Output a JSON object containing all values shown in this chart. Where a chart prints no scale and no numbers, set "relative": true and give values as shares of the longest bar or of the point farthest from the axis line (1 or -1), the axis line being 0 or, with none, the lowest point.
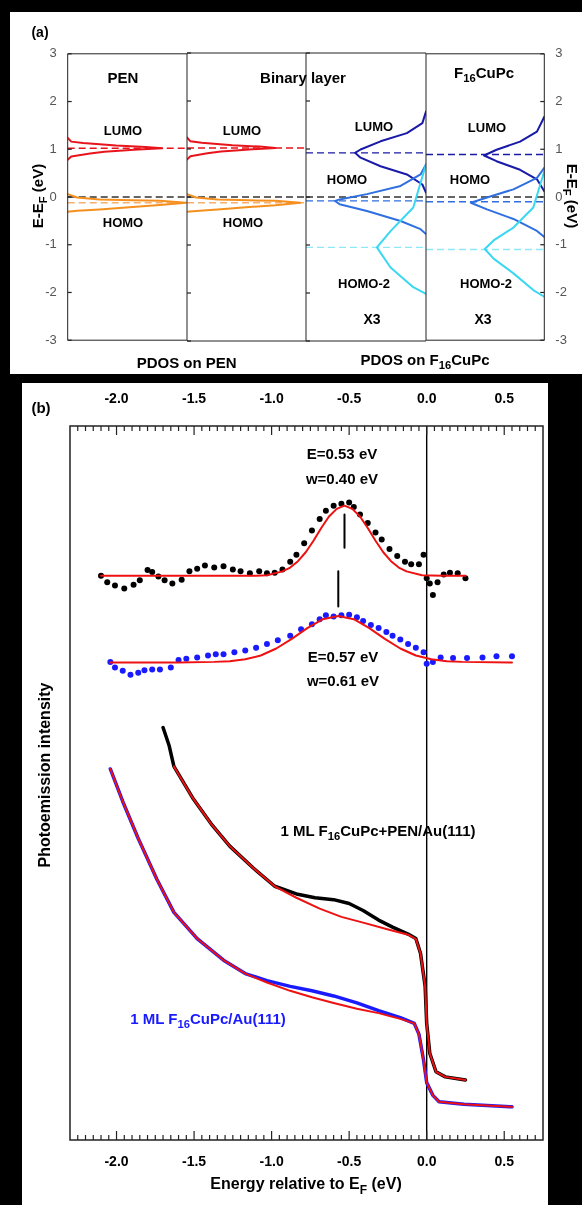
{
  "chart_data": [
    {
      "type": "line",
      "orientation": "horizontal",
      "title": "PEN",
      "xlabel": "PDOS on PEN",
      "ylabel": "E-E$_{F}$ (eV)",
      "annotations": [
        "(a)"
      ],
      "relative": true,
      "ylim": [
        -3,
        3
      ],
      "yticks": [
        -3,
        -2,
        -1,
        0,
        1,
        2,
        3
      ],
      "tick_labels": "y",
      "ref_lines": [
        {
          "axis": "y",
          "value": 1.02,
          "color": "#e8141c",
          "line_style": "dashed"
        },
        {
          "axis": "y",
          "value": 0,
          "color": "#333333",
          "line_style": "dashed"
        },
        {
          "axis": "y",
          "value": -0.12,
          "color": "#f5b070",
          "line_style": "dashed"
        }
      ],
      "series": [
        {
          "name": "LUMO",
          "color": "#e8141c",
          "x": [
            1.24,
            1.16,
            1.13,
            1.08,
            1.05,
            1.02,
            0.99,
            0.95,
            0.91,
            0.85,
            0.78
          ],
          "values": [
            0,
            0.03,
            0.13,
            0.41,
            0.66,
            0.8,
            0.56,
            0.31,
            0.19,
            0.03,
            0
          ]
        },
        {
          "name": "HOMO",
          "color": "#f5901e",
          "x": [
            0.06,
            -0.01,
            -0.05,
            -0.07,
            -0.08,
            -0.12,
            -0.17,
            -0.21,
            -0.26,
            -0.29,
            -0.31
          ],
          "values": [
            0,
            0.08,
            0.27,
            0.55,
            0.78,
            1,
            0.78,
            0.55,
            0.27,
            0.08,
            0
          ]
        }
      ]
    },
    {
      "type": "line",
      "orientation": "horizontal",
      "title": "Binary layer",
      "relative": true,
      "ylim": [
        -3,
        3
      ],
      "yticks": [
        -3,
        -2,
        -1,
        0,
        1,
        2,
        3
      ],
      "tick_labels": false,
      "ref_lines": [
        {
          "axis": "y",
          "value": 1.02,
          "color": "#e8141c",
          "line_style": "dashed"
        },
        {
          "axis": "y",
          "value": 0,
          "color": "#333333",
          "line_style": "dashed"
        },
        {
          "axis": "y",
          "value": -0.12,
          "color": "#f5b070",
          "line_style": "dashed"
        }
      ],
      "series": [
        {
          "name": "LUMO",
          "color": "#e8141c",
          "x": [
            1.24,
            1.16,
            1.13,
            1.08,
            1.05,
            1.02,
            0.99,
            0.95,
            0.91,
            0.85,
            0.78
          ],
          "values": [
            0,
            0.03,
            0.13,
            0.4,
            0.64,
            0.78,
            0.55,
            0.3,
            0.18,
            0.03,
            0
          ]
        },
        {
          "name": "HOMO",
          "color": "#f5901e",
          "x": [
            0.06,
            -0.01,
            -0.05,
            -0.07,
            -0.08,
            -0.12,
            -0.17,
            -0.21,
            -0.26,
            -0.29,
            -0.31
          ],
          "values": [
            0,
            0.08,
            0.27,
            0.55,
            0.78,
            1,
            0.78,
            0.55,
            0.27,
            0.08,
            0
          ]
        }
      ]
    },
    {
      "type": "line",
      "orientation": "horizontal",
      "xlabel": "PDOS on F$_{16}$CuPc",
      "annotations": [
        "X3"
      ],
      "relative": true,
      "ylim": [
        -3,
        3
      ],
      "yticks": [
        -3,
        -2,
        -1,
        0,
        1,
        2,
        3
      ],
      "tick_labels": false,
      "ref_lines": [
        {
          "axis": "y",
          "value": 0.92,
          "color": "#1a1aa8",
          "line_style": "dashed"
        },
        {
          "axis": "y",
          "value": 0,
          "color": "#333333",
          "line_style": "dashed"
        },
        {
          "axis": "y",
          "value": -0.08,
          "color": "#2f6fe0",
          "line_style": "dashed"
        },
        {
          "axis": "y",
          "value": -1.05,
          "color": "#8ee8f5",
          "line_style": "dashed"
        }
      ],
      "series": [
        {
          "name": "LUMO",
          "color": "#1a1aa8",
          "x": [
            1.78,
            1.54,
            1.33,
            1.16,
            0.99,
            0.92,
            0.82,
            0.64,
            0.47,
            0.26,
            0.09
          ],
          "values": [
            0,
            -0.04,
            -0.21,
            -0.5,
            -0.72,
            -0.78,
            -0.72,
            -0.5,
            -0.21,
            -0.04,
            0
          ]
        },
        {
          "name": "HOMO",
          "color": "#2f6fe0",
          "x": [
            0.68,
            0.47,
            0.23,
            0.06,
            -0.05,
            -0.08,
            -0.15,
            -0.29,
            -0.5,
            -0.67,
            -0.77
          ],
          "values": [
            0,
            -0.06,
            -0.28,
            -0.65,
            -0.95,
            -1,
            -0.95,
            -0.65,
            -0.28,
            -0.06,
            0
          ]
        },
        {
          "name": "HOMO-2",
          "color": "#3ad8f0",
          "x": [
            0.68,
            -0.22,
            -0.71,
            -1.05,
            -1.47,
            -1.88,
            -2.02
          ],
          "values": [
            0,
            -0.14,
            -0.39,
            -0.54,
            -0.39,
            -0.14,
            0
          ]
        }
      ]
    },
    {
      "type": "line",
      "orientation": "horizontal",
      "title": "F$_{16}$CuPc",
      "ylabel": "E-E$_{F}$ (eV)",
      "annotations": [
        "X3"
      ],
      "relative": true,
      "ylim": [
        -3,
        3
      ],
      "yticks": [
        -3,
        -2,
        -1,
        0,
        1,
        2,
        3
      ],
      "ref_lines": [
        {
          "axis": "y",
          "value": 0.89,
          "color": "#1a1aa8",
          "line_style": "dashed"
        },
        {
          "axis": "y",
          "value": 0,
          "color": "#333333",
          "line_style": "dashed"
        },
        {
          "axis": "y",
          "value": -0.1,
          "color": "#2f6fe0",
          "line_style": "dashed"
        },
        {
          "axis": "y",
          "value": -1.1,
          "color": "#8ee8f5",
          "line_style": "dashed"
        }
      ],
      "series": [
        {
          "name": "LUMO",
          "color": "#1a1aa8",
          "x": [
            1.68,
            1.37,
            1.16,
            0.99,
            0.87,
            0.75,
            0.57,
            0.37,
            0.12
          ],
          "values": [
            0,
            -0.1,
            -0.33,
            -0.65,
            -0.82,
            -0.65,
            -0.33,
            -0.1,
            0
          ]
        },
        {
          "name": "HOMO",
          "color": "#2f6fe0",
          "x": [
            0.61,
            0.4,
            0.16,
            -0.01,
            -0.12,
            -0.26,
            -0.46,
            -0.71,
            -0.84
          ],
          "values": [
            0,
            -0.1,
            -0.42,
            -0.78,
            -1,
            -0.78,
            -0.42,
            -0.1,
            0
          ]
        },
        {
          "name": "HOMO-2",
          "color": "#3ad8f0",
          "x": [
            0.54,
            -0.22,
            -0.64,
            -0.91,
            -1.09,
            -1.29,
            -1.6,
            -1.95,
            -2.09
          ],
          "values": [
            0,
            -0.15,
            -0.42,
            -0.69,
            -0.81,
            -0.69,
            -0.42,
            -0.15,
            0
          ]
        }
      ]
    },
    {
      "type": "line",
      "xlabel": "Energy relative to E$_{F}$ (eV)",
      "ylabel": "Photoemission intensity",
      "annotations": [
        "(b)",
        "E=0.53 eV",
        "w=0.40 eV",
        "E=0.57 eV",
        "w=0.61 eV"
      ],
      "relative": true,
      "xlim": [
        -2.3,
        0.75
      ],
      "xticks": [
        {
          "value": -2.25,
          "label": null
        },
        {
          "value": -2.2,
          "label": null
        },
        {
          "value": -2.15,
          "label": null
        },
        {
          "value": -2.1,
          "label": null
        },
        {
          "value": -2.05,
          "label": null
        },
        {
          "value": -2,
          "label": "-2.0"
        },
        {
          "value": -1.95,
          "label": null
        },
        {
          "value": -1.9,
          "label": null
        },
        {
          "value": -1.85,
          "label": null
        },
        {
          "value": -1.8,
          "label": null
        },
        {
          "value": -1.75,
          "label": null
        },
        {
          "value": -1.7,
          "label": null
        },
        {
          "value": -1.65,
          "label": null
        },
        {
          "value": -1.6,
          "label": null
        },
        {
          "value": -1.55,
          "label": null
        },
        {
          "value": -1.5,
          "label": "-1.5"
        },
        {
          "value": -1.45,
          "label": null
        },
        {
          "value": -1.4,
          "label": null
        },
        {
          "value": -1.35,
          "label": null
        },
        {
          "value": -1.3,
          "label": null
        },
        {
          "value": -1.25,
          "label": null
        },
        {
          "value": -1.2,
          "label": null
        },
        {
          "value": -1.15,
          "label": null
        },
        {
          "value": -1.1,
          "label": null
        },
        {
          "value": -1.05,
          "label": null
        },
        {
          "value": -1,
          "label": "-1.0"
        },
        {
          "value": -0.95,
          "label": null
        },
        {
          "value": -0.9,
          "label": null
        },
        {
          "value": -0.85,
          "label": null
        },
        {
          "value": -0.8,
          "label": null
        },
        {
          "value": -0.75,
          "label": null
        },
        {
          "value": -0.7,
          "label": null
        },
        {
          "value": -0.65,
          "label": null
        },
        {
          "value": -0.6,
          "label": null
        },
        {
          "value": -0.55,
          "label": null
        },
        {
          "value": -0.5,
          "label": "-0.5"
        },
        {
          "value": -0.45,
          "label": null
        },
        {
          "value": -0.4,
          "label": null
        },
        {
          "value": -0.35,
          "label": null
        },
        {
          "value": -0.3,
          "label": null
        },
        {
          "value": -0.25,
          "label": null
        },
        {
          "value": -0.2,
          "label": null
        },
        {
          "value": -0.15,
          "label": null
        },
        {
          "value": -0.1,
          "label": null
        },
        {
          "value": -0.05,
          "label": null
        },
        {
          "value": 0,
          "label": "0.0"
        },
        {
          "value": 0.05,
          "label": null
        },
        {
          "value": 0.1,
          "label": null
        },
        {
          "value": 0.15,
          "label": null
        },
        {
          "value": 0.2,
          "label": null
        },
        {
          "value": 0.25,
          "label": null
        },
        {
          "value": 0.3,
          "label": null
        },
        {
          "value": 0.35,
          "label": null
        },
        {
          "value": 0.4,
          "label": null
        },
        {
          "value": 0.45,
          "label": null
        },
        {
          "value": 0.5,
          "label": "0.5"
        },
        {
          "value": 0.55,
          "label": null
        },
        {
          "value": 0.6,
          "label": null
        },
        {
          "value": 0.65,
          "label": null
        },
        {
          "value": 0.7,
          "label": null
        }
      ],
      "x2lim": [
        -2.3,
        0.75
      ],
      "x2ticks": [
        {
          "value": -2.25,
          "label": null
        },
        {
          "value": -2.2,
          "label": null
        },
        {
          "value": -2.15,
          "label": null
        },
        {
          "value": -2.1,
          "label": null
        },
        {
          "value": -2.05,
          "label": null
        },
        {
          "value": -2,
          "label": "-2.0"
        },
        {
          "value": -1.95,
          "label": null
        },
        {
          "value": -1.9,
          "label": null
        },
        {
          "value": -1.85,
          "label": null
        },
        {
          "value": -1.8,
          "label": null
        },
        {
          "value": -1.75,
          "label": null
        },
        {
          "value": -1.7,
          "label": null
        },
        {
          "value": -1.65,
          "label": null
        },
        {
          "value": -1.6,
          "label": null
        },
        {
          "value": -1.55,
          "label": null
        },
        {
          "value": -1.5,
          "label": "-1.5"
        },
        {
          "value": -1.45,
          "label": null
        },
        {
          "value": -1.4,
          "label": null
        },
        {
          "value": -1.35,
          "label": null
        },
        {
          "value": -1.3,
          "label": null
        },
        {
          "value": -1.25,
          "label": null
        },
        {
          "value": -1.2,
          "label": null
        },
        {
          "value": -1.15,
          "label": null
        },
        {
          "value": -1.1,
          "label": null
        },
        {
          "value": -1.05,
          "label": null
        },
        {
          "value": -1,
          "label": "-1.0"
        },
        {
          "value": -0.95,
          "label": null
        },
        {
          "value": -0.9,
          "label": null
        },
        {
          "value": -0.85,
          "label": null
        },
        {
          "value": -0.8,
          "label": null
        },
        {
          "value": -0.75,
          "label": null
        },
        {
          "value": -0.7,
          "label": null
        },
        {
          "value": -0.65,
          "label": null
        },
        {
          "value": -0.6,
          "label": null
        },
        {
          "value": -0.55,
          "label": null
        },
        {
          "value": -0.5,
          "label": "-0.5"
        },
        {
          "value": -0.45,
          "label": null
        },
        {
          "value": -0.4,
          "label": null
        },
        {
          "value": -0.35,
          "label": null
        },
        {
          "value": -0.3,
          "label": null
        },
        {
          "value": -0.25,
          "label": null
        },
        {
          "value": -0.2,
          "label": null
        },
        {
          "value": -0.15,
          "label": null
        },
        {
          "value": -0.1,
          "label": null
        },
        {
          "value": -0.05,
          "label": null
        },
        {
          "value": 0,
          "label": "0.0"
        },
        {
          "value": 0.05,
          "label": null
        },
        {
          "value": 0.1,
          "label": null
        },
        {
          "value": 0.15,
          "label": null
        },
        {
          "value": 0.2,
          "label": null
        },
        {
          "value": 0.25,
          "label": null
        },
        {
          "value": 0.3,
          "label": null
        },
        {
          "value": 0.35,
          "label": null
        },
        {
          "value": 0.4,
          "label": null
        },
        {
          "value": 0.45,
          "label": null
        },
        {
          "value": 0.5,
          "label": "0.5"
        },
        {
          "value": 0.55,
          "label": null
        },
        {
          "value": 0.6,
          "label": null
        },
        {
          "value": 0.65,
          "label": null
        },
        {
          "value": 0.7,
          "label": null
        }
      ],
      "ref_lines": [
        {
          "axis": "x",
          "value": 0,
          "color": "#000000",
          "line_style": "solid"
        }
      ],
      "series": [
        {
          "type": "scatter",
          "marker": "circle",
          "color": "#000000",
          "x": [
            -2.1,
            -2.06,
            -2.01,
            -1.95,
            -1.89,
            -1.85,
            -1.8,
            -1.77,
            -1.73,
            -1.69,
            -1.64,
            -1.58,
            -1.53,
            -1.48,
            -1.43,
            -1.37,
            -1.31,
            -1.25,
            -1.2,
            -1.14,
            -1.08,
            -1.03,
            -0.98,
            -0.93,
            -0.88,
            -0.84,
            -0.79,
            -0.74,
            -0.69,
            -0.65,
            -0.6,
            -0.55,
            -0.5,
            -0.47,
            -0.43,
            -0.38,
            -0.33,
            -0.29,
            -0.24,
            -0.19,
            -0.14,
            -0.1,
            -0.05,
            -0.02,
            0.0,
            0.02,
            0.04,
            0.07,
            0.11,
            0.15,
            0.2,
            0.25
          ],
          "values": [
            0.885,
            0.875,
            0.87,
            0.865,
            0.871,
            0.878,
            0.894,
            0.891,
            0.884,
            0.878,
            0.873,
            0.879,
            0.892,
            0.896,
            0.901,
            0.898,
            0.9,
            0.895,
            0.892,
            0.889,
            0.892,
            0.889,
            0.89,
            0.895,
            0.907,
            0.918,
            0.936,
            0.956,
            0.974,
            0.987,
            0.995,
            0.998,
            1.0,
            0.993,
            0.981,
            0.968,
            0.953,
            0.942,
            0.927,
            0.916,
            0.907,
            0.903,
            0.903,
            0.918,
            0.881,
            0.873,
            0.855,
            0.875,
            0.887,
            0.89,
            0.889,
            0.881
          ]
        },
        {
          "type": "scatter",
          "marker": "circle",
          "color": "#1a1aff",
          "x": [
            -2.04,
            -2.01,
            -1.96,
            -1.91,
            -1.86,
            -1.82,
            -1.77,
            -1.72,
            -1.65,
            -1.6,
            -1.55,
            -1.48,
            -1.41,
            -1.36,
            -1.31,
            -1.24,
            -1.17,
            -1.1,
            -1.03,
            -0.96,
            -0.88,
            -0.81,
            -0.74,
            -0.69,
            -0.65,
            -0.6,
            -0.55,
            -0.5,
            -0.45,
            -0.41,
            -0.36,
            -0.31,
            -0.26,
            -0.22,
            -0.17,
            -0.12,
            -0.07,
            -0.02,
            0.0,
            0.04,
            0.09,
            0.17,
            0.26,
            0.36,
            0.45,
            0.55
          ],
          "values": [
            0.75,
            0.741,
            0.736,
            0.73,
            0.733,
            0.737,
            0.738,
            0.738,
            0.741,
            0.753,
            0.755,
            0.757,
            0.76,
            0.762,
            0.762,
            0.765,
            0.768,
            0.772,
            0.778,
            0.784,
            0.791,
            0.801,
            0.809,
            0.817,
            0.823,
            0.821,
            0.823,
            0.824,
            0.82,
            0.814,
            0.808,
            0.803,
            0.797,
            0.791,
            0.785,
            0.778,
            0.772,
            0.765,
            0.747,
            0.75,
            0.757,
            0.756,
            0.756,
            0.757,
            0.759,
            0.759
          ]
        },
        {
          "color": "#ee1111",
          "x": [
            -2.1,
            -1.5,
            -1.1,
            -1.03,
            -0.93,
            -0.88,
            -0.83,
            -0.78,
            -0.73,
            -0.68,
            -0.63,
            -0.58,
            -0.53,
            -0.48,
            -0.43,
            -0.38,
            -0.33,
            -0.28,
            -0.23,
            -0.18,
            -0.13,
            -0.03,
            0.1,
            0.25
          ],
          "values": [
            0.885,
            0.885,
            0.885,
            0.886,
            0.892,
            0.898,
            0.908,
            0.922,
            0.94,
            0.96,
            0.978,
            0.99,
            0.995,
            0.99,
            0.978,
            0.96,
            0.94,
            0.922,
            0.908,
            0.898,
            0.892,
            0.886,
            0.885,
            0.885
          ]
        },
        {
          "color": "#ee1111",
          "x": [
            -2.04,
            -1.6,
            -1.37,
            -1.27,
            -1.17,
            -1.07,
            -0.97,
            -0.87,
            -0.77,
            -0.67,
            -0.57,
            -0.47,
            -0.37,
            -0.27,
            -0.17,
            -0.07,
            0.03,
            0.13,
            0.23,
            0.55
          ],
          "values": [
            0.749,
            0.749,
            0.75,
            0.751,
            0.754,
            0.76,
            0.771,
            0.786,
            0.803,
            0.817,
            0.822,
            0.817,
            0.803,
            0.786,
            0.771,
            0.76,
            0.754,
            0.751,
            0.75,
            0.749
          ]
        },
        {
          "color": "#000000",
          "x": [
            -0.53,
            -0.53
          ],
          "values": [
            0.981,
            0.929
          ]
        },
        {
          "color": "#000000",
          "x": [
            -0.57,
            -0.57
          ],
          "values": [
            0.892,
            0.837
          ]
        },
        {
          "name": "1 ML F$_{16}$CuPc+PEN/Au(111)",
          "color": "#000000",
          "x": [
            -1.7,
            -1.66,
            -1.63,
            -1.51,
            -1.39,
            -1.27,
            -1.12,
            -0.98,
            -0.84,
            -0.72,
            -0.6,
            -0.5,
            -0.41,
            -0.31,
            -0.22,
            -0.12,
            -0.07,
            -0.04,
            -0.01,
            0.0,
            0.02,
            0.06,
            0.12,
            0.25
          ],
          "values": [
            0.647,
            0.618,
            0.586,
            0.537,
            0.496,
            0.461,
            0.427,
            0.398,
            0.386,
            0.38,
            0.377,
            0.371,
            0.36,
            0.345,
            0.334,
            0.323,
            0.316,
            0.293,
            0.241,
            0.183,
            0.136,
            0.107,
            0.099,
            0.094
          ]
        },
        {
          "name": "1 ML F$_{16}$CuPc/Au(111)",
          "color": "#1a1aff",
          "x": [
            -2.04,
            -1.96,
            -1.86,
            -1.74,
            -1.63,
            -1.48,
            -1.31,
            -1.17,
            -1.03,
            -0.88,
            -0.74,
            -0.6,
            -0.45,
            -0.31,
            -0.17,
            -0.08,
            -0.05,
            -0.02,
            0.0,
            0.04,
            0.08,
            0.24,
            0.55
          ],
          "values": [
            0.582,
            0.531,
            0.473,
            0.409,
            0.357,
            0.316,
            0.282,
            0.261,
            0.25,
            0.241,
            0.234,
            0.226,
            0.215,
            0.203,
            0.192,
            0.183,
            0.166,
            0.125,
            0.09,
            0.07,
            0.06,
            0.056,
            0.052
          ]
        },
        {
          "color": "#ee1111",
          "x": [
            -1.63,
            -1.51,
            -1.39,
            -1.27,
            -1.12,
            -0.98,
            -0.84,
            -0.69,
            -0.55,
            -0.41,
            -0.26,
            -0.12,
            -0.07,
            -0.04,
            -0.01,
            0.0,
            0.02,
            0.06,
            0.12,
            0.25
          ],
          "values": [
            0.586,
            0.537,
            0.496,
            0.461,
            0.427,
            0.398,
            0.38,
            0.363,
            0.35,
            0.341,
            0.331,
            0.322,
            0.315,
            0.293,
            0.241,
            0.183,
            0.136,
            0.107,
            0.099,
            0.094
          ]
        },
        {
          "color": "#ee1111",
          "x": [
            -2.04,
            -1.96,
            -1.86,
            -1.74,
            -1.63,
            -1.48,
            -1.31,
            -1.17,
            -1.03,
            -0.88,
            -0.74,
            -0.6,
            -0.45,
            -0.31,
            -0.17,
            -0.08,
            -0.05,
            -0.02,
            0.0,
            0.04,
            0.08,
            0.24,
            0.55
          ],
          "values": [
            0.582,
            0.531,
            0.473,
            0.409,
            0.357,
            0.316,
            0.282,
            0.261,
            0.247,
            0.234,
            0.224,
            0.215,
            0.206,
            0.199,
            0.19,
            0.183,
            0.166,
            0.125,
            0.09,
            0.07,
            0.06,
            0.056,
            0.052
          ]
        }
      ]
    }
  ]
}
